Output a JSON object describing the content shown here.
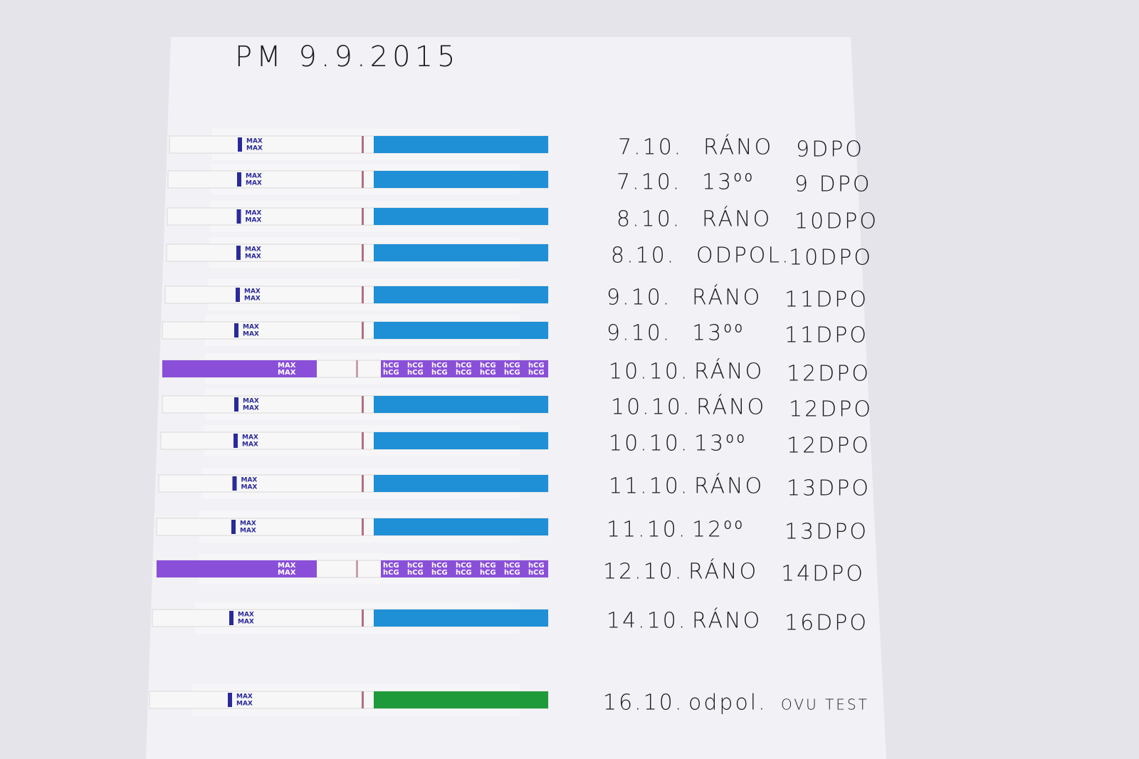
{
  "header": {
    "title": "PM 9.9.2015"
  },
  "strip_labels": {
    "max": "MAX",
    "hcg": "hCG"
  },
  "rows": [
    {
      "date": "7.10.",
      "time": "RÁNO",
      "dpo": "9DPO",
      "color": "blue"
    },
    {
      "date": "7.10.",
      "time": "13⁰⁰",
      "dpo": "9 DPO",
      "color": "blue"
    },
    {
      "date": "8.10.",
      "time": "RÁNO",
      "dpo": "10DPO",
      "color": "blue"
    },
    {
      "date": "8.10.",
      "time": "ODPOL.",
      "dpo": "10DPO",
      "color": "blue"
    },
    {
      "date": "9.10.",
      "time": "RÁNO",
      "dpo": "11DPO",
      "color": "blue"
    },
    {
      "date": "9.10.",
      "time": "13⁰⁰",
      "dpo": "11DPO",
      "color": "blue"
    },
    {
      "date": "10.10.",
      "time": "RÁNO",
      "dpo": "12DPO",
      "color": "purple"
    },
    {
      "date": "10.10.",
      "time": "RÁNO",
      "dpo": "12DPO",
      "color": "blue"
    },
    {
      "date": "10.10.",
      "time": "13⁰⁰",
      "dpo": "12DPO",
      "color": "blue"
    },
    {
      "date": "11.10.",
      "time": "RÁNO",
      "dpo": "13DPO",
      "color": "blue"
    },
    {
      "date": "11.10.",
      "time": "12⁰⁰",
      "dpo": "13DPO",
      "color": "blue"
    },
    {
      "date": "12.10.",
      "time": "RÁNO",
      "dpo": "14DPO",
      "color": "purple"
    },
    {
      "date": "14.10.",
      "time": "RÁNO",
      "dpo": "16DPO",
      "color": "blue"
    },
    {
      "date": "16.10.",
      "time": "odpol.",
      "dpo": "OVU TEST",
      "color": "green"
    }
  ]
}
